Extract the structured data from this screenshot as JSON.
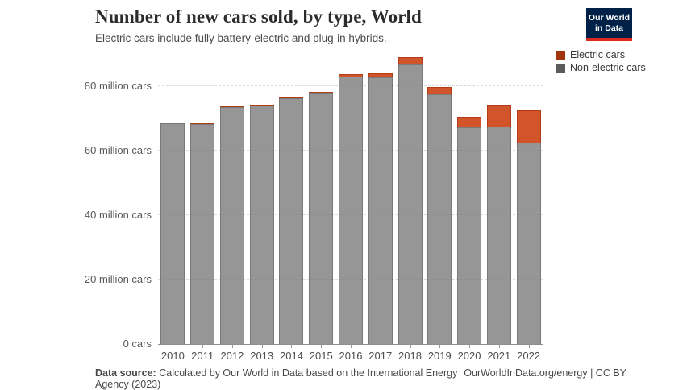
{
  "header": {
    "title": "Number of new cars sold, by type, World",
    "subtitle": "Electric cars include fully battery-electric and plug-in hybrids."
  },
  "logo": {
    "line1": "Our World",
    "line2": "in Data",
    "bg_color": "#002147",
    "stripe_color": "#dc2a20"
  },
  "legend": {
    "items": [
      {
        "label": "Electric cars",
        "color": "#a2350b"
      },
      {
        "label": "Non-electric cars",
        "color": "#5b5b5b"
      }
    ]
  },
  "footer": {
    "source_label": "Data source:",
    "source_text": "Calculated by Our World in Data based on the International Energy Agency (2023)",
    "right_text": "OurWorldInData.org/energy | CC BY"
  },
  "chart_data": {
    "type": "bar",
    "stacked": true,
    "title": "Number of new cars sold, by type, World",
    "subtitle": "Electric cars include fully battery-electric and plug-in hybrids.",
    "unit": "million cars",
    "categories": [
      "2010",
      "2011",
      "2012",
      "2013",
      "2014",
      "2015",
      "2016",
      "2017",
      "2018",
      "2019",
      "2020",
      "2021",
      "2022"
    ],
    "series": [
      {
        "name": "Electric cars",
        "color": "#b13507",
        "values": [
          0.01,
          0.05,
          0.12,
          0.2,
          0.32,
          0.55,
          0.75,
          1.2,
          2.1,
          2.2,
          3.1,
          6.7,
          10.2
        ]
      },
      {
        "name": "Non-electric cars",
        "color": "#5b5b5b",
        "values": [
          68.6,
          68.2,
          73.4,
          74.0,
          76.2,
          77.8,
          83.0,
          82.7,
          86.8,
          77.5,
          67.3,
          67.5,
          62.4
        ]
      }
    ],
    "ylim": [
      0,
      80
    ],
    "yticks": [
      {
        "value": 0,
        "label": "0 cars"
      },
      {
        "value": 20,
        "label": "20 million cars"
      },
      {
        "value": 40,
        "label": "40 million cars"
      },
      {
        "value": 60,
        "label": "60 million cars"
      },
      {
        "value": 80,
        "label": "80 million cars"
      }
    ],
    "grid": "dashed-horizontal",
    "legend_position": "top-right"
  }
}
